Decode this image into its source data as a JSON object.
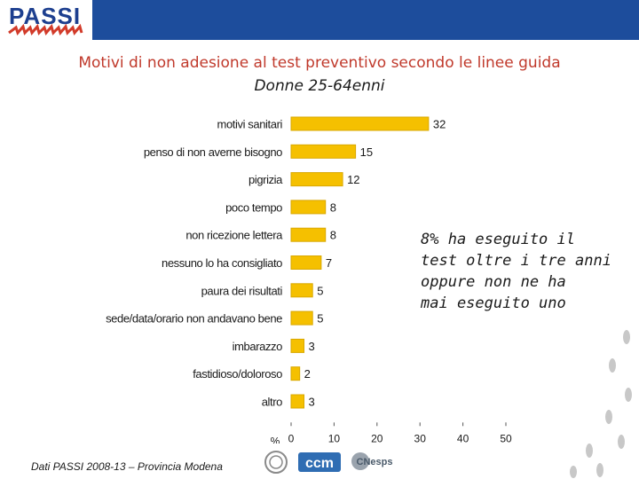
{
  "header": {
    "logo_text": "PASSI",
    "band_color": "#1d4d9c"
  },
  "title": "Motivi di non adesione al test preventivo secondo le linee guida",
  "subtitle": "Donne 25-64enni",
  "note": [
    "8% ha eseguito il",
    "test oltre i tre anni",
    "oppure non ne ha",
    "mai eseguito uno"
  ],
  "footer": "Dati PASSI 2008-13 – Provincia Modena",
  "logos": {
    "ccm_text": "ccm",
    "third_text": "CNesps"
  },
  "chart_data": {
    "type": "bar",
    "orientation": "horizontal",
    "categories": [
      "motivi sanitari",
      "penso di non averne bisogno",
      "pigrizia",
      "poco tempo",
      "non ricezione lettera",
      "nessuno lo ha consigliato",
      "paura dei risultati",
      "sede/data/orario non andavano bene",
      "imbarazzo",
      "fastidioso/doloroso",
      "altro"
    ],
    "values": [
      32,
      15,
      12,
      8,
      8,
      7,
      5,
      5,
      3,
      2,
      3
    ],
    "xlabel": "%",
    "xlim": [
      0,
      50
    ],
    "xticks": [
      0,
      10,
      20,
      30,
      40,
      50
    ],
    "bar_color": "#f5c000",
    "bar_edge": "#d9a800"
  }
}
